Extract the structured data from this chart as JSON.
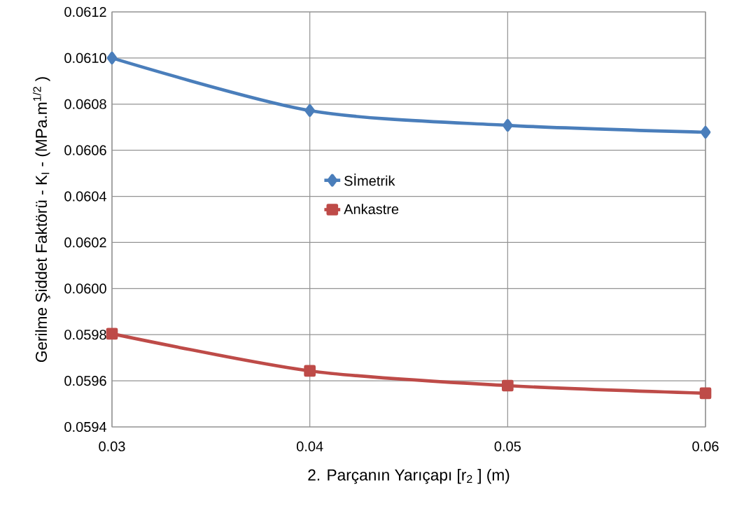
{
  "chart_data": {
    "type": "line",
    "xlabel": "2. Parçanın Yarıçapı  [r$_{2}$ ] (m)",
    "ylabel": "Gerilme Şiddet Faktörü - K$_{I}$ - (MPa.m$^{1/2}$ )",
    "x": [
      0.03,
      0.04,
      0.05,
      0.06
    ],
    "series": [
      {
        "name": "Sİmetrik",
        "color": "#4a7ebb",
        "marker": "diamond",
        "values": [
          0.061,
          0.060772,
          0.060708,
          0.060678
        ]
      },
      {
        "name": "Ankastre",
        "color": "#be4b48",
        "marker": "square",
        "values": [
          0.059804,
          0.059643,
          0.059579,
          0.059546
        ]
      }
    ],
    "xlim": [
      0.03,
      0.06
    ],
    "xticks": [
      0.03,
      0.04,
      0.05,
      0.06
    ],
    "ylim": [
      0.0594,
      0.0612
    ],
    "yticks": [
      0.0594,
      0.0596,
      0.0598,
      {
        "value": 0.06,
        "label": "0.0600"
      },
      0.0602,
      0.0604,
      0.0606,
      0.0608,
      {
        "value": 0.061,
        "label": "0.0610"
      },
      0.0612
    ],
    "grid": true,
    "legend": "center",
    "line_style": "solid"
  }
}
